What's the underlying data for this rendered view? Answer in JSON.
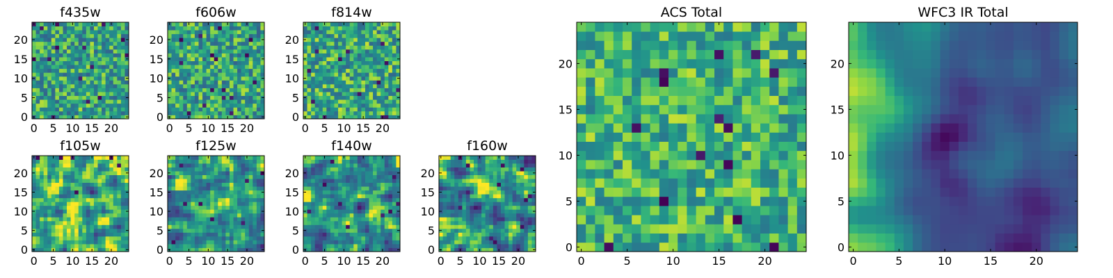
{
  "chart_data": [
    {
      "type": "heatmap",
      "title": "f435w",
      "colormap": "viridis",
      "rows": 25,
      "cols": 25,
      "xlim": [
        -0.5,
        24.5
      ],
      "ylim": [
        -0.5,
        24.5
      ],
      "xticks": [
        0,
        5,
        10,
        15,
        20
      ],
      "yticks": [
        0,
        5,
        10,
        15,
        20
      ],
      "xtick_labels": [
        "0",
        "5",
        "10",
        "15",
        "20"
      ],
      "ytick_labels": [
        "0",
        "5",
        "10",
        "15",
        "20"
      ],
      "pattern": "noise",
      "seed": 11,
      "mean": 0.66,
      "spread": 0.26,
      "darkcount": 16
    },
    {
      "type": "heatmap",
      "title": "f606w",
      "colormap": "viridis",
      "rows": 25,
      "cols": 25,
      "xlim": [
        -0.5,
        24.5
      ],
      "ylim": [
        -0.5,
        24.5
      ],
      "xticks": [
        0,
        5,
        10,
        15,
        20
      ],
      "yticks": [
        0,
        5,
        10,
        15,
        20
      ],
      "xtick_labels": [
        "0",
        "5",
        "10",
        "15",
        "20"
      ],
      "ytick_labels": [
        "0",
        "5",
        "10",
        "15",
        "20"
      ],
      "pattern": "noise",
      "seed": 23,
      "mean": 0.66,
      "spread": 0.26,
      "darkcount": 16
    },
    {
      "type": "heatmap",
      "title": "f814w",
      "colormap": "viridis",
      "rows": 25,
      "cols": 25,
      "xlim": [
        -0.5,
        24.5
      ],
      "ylim": [
        -0.5,
        24.5
      ],
      "xticks": [
        0,
        5,
        10,
        15,
        20
      ],
      "yticks": [
        0,
        5,
        10,
        15,
        20
      ],
      "xtick_labels": [
        "0",
        "5",
        "10",
        "15",
        "20"
      ],
      "ytick_labels": [
        "0",
        "5",
        "10",
        "15",
        "20"
      ],
      "pattern": "noise",
      "seed": 37,
      "mean": 0.68,
      "spread": 0.26,
      "darkcount": 14
    },
    {
      "type": "heatmap",
      "title": "f105w",
      "colormap": "viridis",
      "rows": 25,
      "cols": 25,
      "xlim": [
        -0.5,
        24.5
      ],
      "ylim": [
        -0.5,
        24.5
      ],
      "xticks": [
        0,
        5,
        10,
        15,
        20
      ],
      "yticks": [
        0,
        5,
        10,
        15,
        20
      ],
      "xtick_labels": [
        "0",
        "5",
        "10",
        "15",
        "20"
      ],
      "ytick_labels": [
        "0",
        "5",
        "10",
        "15",
        "20"
      ],
      "pattern": "smooth",
      "seed": 41,
      "mean": 0.66,
      "spread": 0.5,
      "darkcount": 6
    },
    {
      "type": "heatmap",
      "title": "f125w",
      "colormap": "viridis",
      "rows": 25,
      "cols": 25,
      "xlim": [
        -0.5,
        24.5
      ],
      "ylim": [
        -0.5,
        24.5
      ],
      "xticks": [
        0,
        5,
        10,
        15,
        20
      ],
      "yticks": [
        0,
        5,
        10,
        15,
        20
      ],
      "xtick_labels": [
        "0",
        "5",
        "10",
        "15",
        "20"
      ],
      "ytick_labels": [
        "0",
        "5",
        "10",
        "15",
        "20"
      ],
      "pattern": "smooth",
      "seed": 53,
      "mean": 0.64,
      "spread": 0.5,
      "darkcount": 8
    },
    {
      "type": "heatmap",
      "title": "f140w",
      "colormap": "viridis",
      "rows": 25,
      "cols": 25,
      "xlim": [
        -0.5,
        24.5
      ],
      "ylim": [
        -0.5,
        24.5
      ],
      "xticks": [
        0,
        5,
        10,
        15,
        20
      ],
      "yticks": [
        0,
        5,
        10,
        15,
        20
      ],
      "xtick_labels": [
        "0",
        "5",
        "10",
        "15",
        "20"
      ],
      "ytick_labels": [
        "0",
        "5",
        "10",
        "15",
        "20"
      ],
      "pattern": "smooth",
      "seed": 67,
      "mean": 0.6,
      "spread": 0.52,
      "darkcount": 10
    },
    {
      "type": "heatmap",
      "title": "f160w",
      "colormap": "viridis",
      "rows": 25,
      "cols": 25,
      "xlim": [
        -0.5,
        24.5
      ],
      "ylim": [
        -0.5,
        24.5
      ],
      "xticks": [
        0,
        5,
        10,
        15,
        20
      ],
      "yticks": [
        0,
        5,
        10,
        15,
        20
      ],
      "xtick_labels": [
        "0",
        "5",
        "10",
        "15",
        "20"
      ],
      "ytick_labels": [
        "0",
        "5",
        "10",
        "15",
        "20"
      ],
      "pattern": "smooth",
      "seed": 79,
      "mean": 0.6,
      "spread": 0.52,
      "darkcount": 10
    },
    {
      "type": "heatmap",
      "title": "ACS Total",
      "colormap": "viridis",
      "rows": 25,
      "cols": 25,
      "xlim": [
        -0.5,
        24.5
      ],
      "ylim": [
        -0.5,
        24.5
      ],
      "xticks": [
        0,
        5,
        10,
        15,
        20
      ],
      "yticks": [
        0,
        5,
        10,
        15,
        20
      ],
      "xtick_labels": [
        "0",
        "5",
        "10",
        "15",
        "20"
      ],
      "ytick_labels": [
        "0",
        "5",
        "10",
        "15",
        "20"
      ],
      "pattern": "noise",
      "seed": 97,
      "mean": 0.72,
      "spread": 0.22,
      "darkcount": 14
    },
    {
      "type": "heatmap",
      "title": "WFC3 IR Total",
      "colormap": "viridis",
      "rows": 25,
      "cols": 25,
      "xlim": [
        -0.5,
        24.5
      ],
      "ylim": [
        -0.5,
        24.5
      ],
      "xticks": [
        0,
        5,
        10,
        15,
        20
      ],
      "yticks": [
        0,
        5,
        10,
        15,
        20
      ],
      "xtick_labels": [
        "0",
        "5",
        "10",
        "15",
        "20"
      ],
      "ytick_labels": [
        "0",
        "5",
        "10",
        "15",
        "20"
      ],
      "pattern": "ir_total",
      "seed": 101,
      "mean": 0.45,
      "spread": 0.35,
      "darkcount": 0
    }
  ]
}
